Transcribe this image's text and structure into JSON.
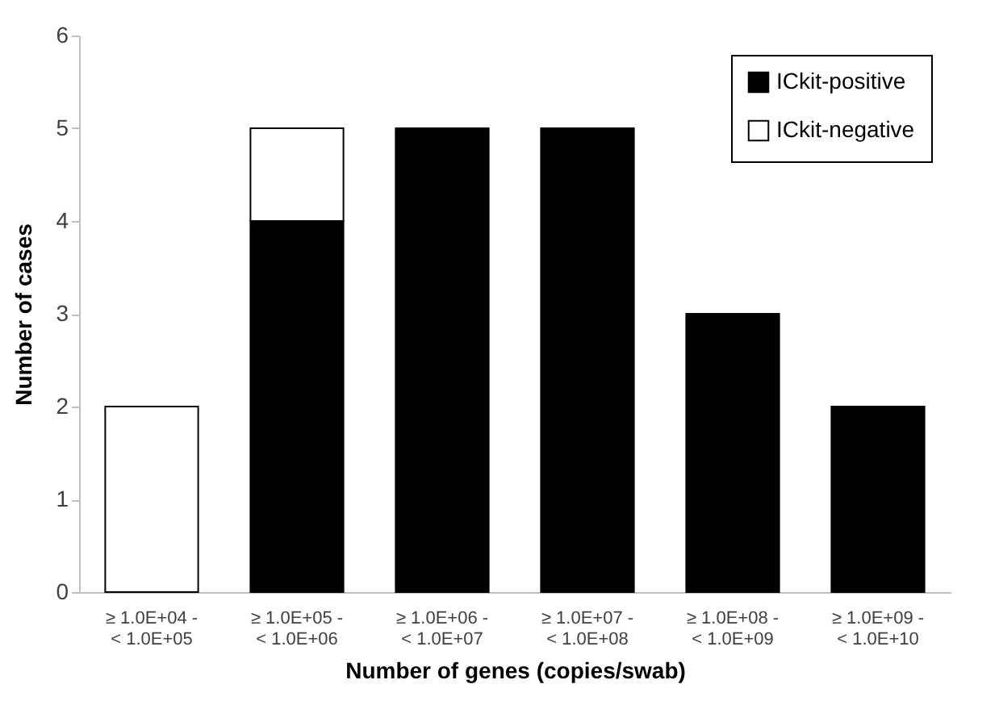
{
  "chart_data": {
    "type": "bar",
    "stacked": true,
    "xlabel": "Number of genes (copies/swab)",
    "ylabel": "Number of cases",
    "categories": [
      "≥ 1.0E+04 -\n< 1.0E+05",
      "≥ 1.0E+05 -\n< 1.0E+06",
      "≥ 1.0E+06 -\n< 1.0E+07",
      "≥ 1.0E+07 -\n< 1.0E+08",
      "≥ 1.0E+08 -\n< 1.0E+09",
      "≥ 1.0E+09 -\n< 1.0E+10"
    ],
    "series": [
      {
        "name": "ICkit-positive",
        "color": "#000000",
        "values": [
          0,
          4,
          5,
          5,
          3,
          2
        ]
      },
      {
        "name": "ICkit-negative",
        "color": "#ffffff",
        "values": [
          2,
          1,
          0,
          0,
          0,
          0
        ]
      }
    ],
    "ylim": [
      0,
      6
    ],
    "yticks": [
      0,
      1,
      2,
      3,
      4,
      5,
      6
    ],
    "legend": "top right"
  }
}
